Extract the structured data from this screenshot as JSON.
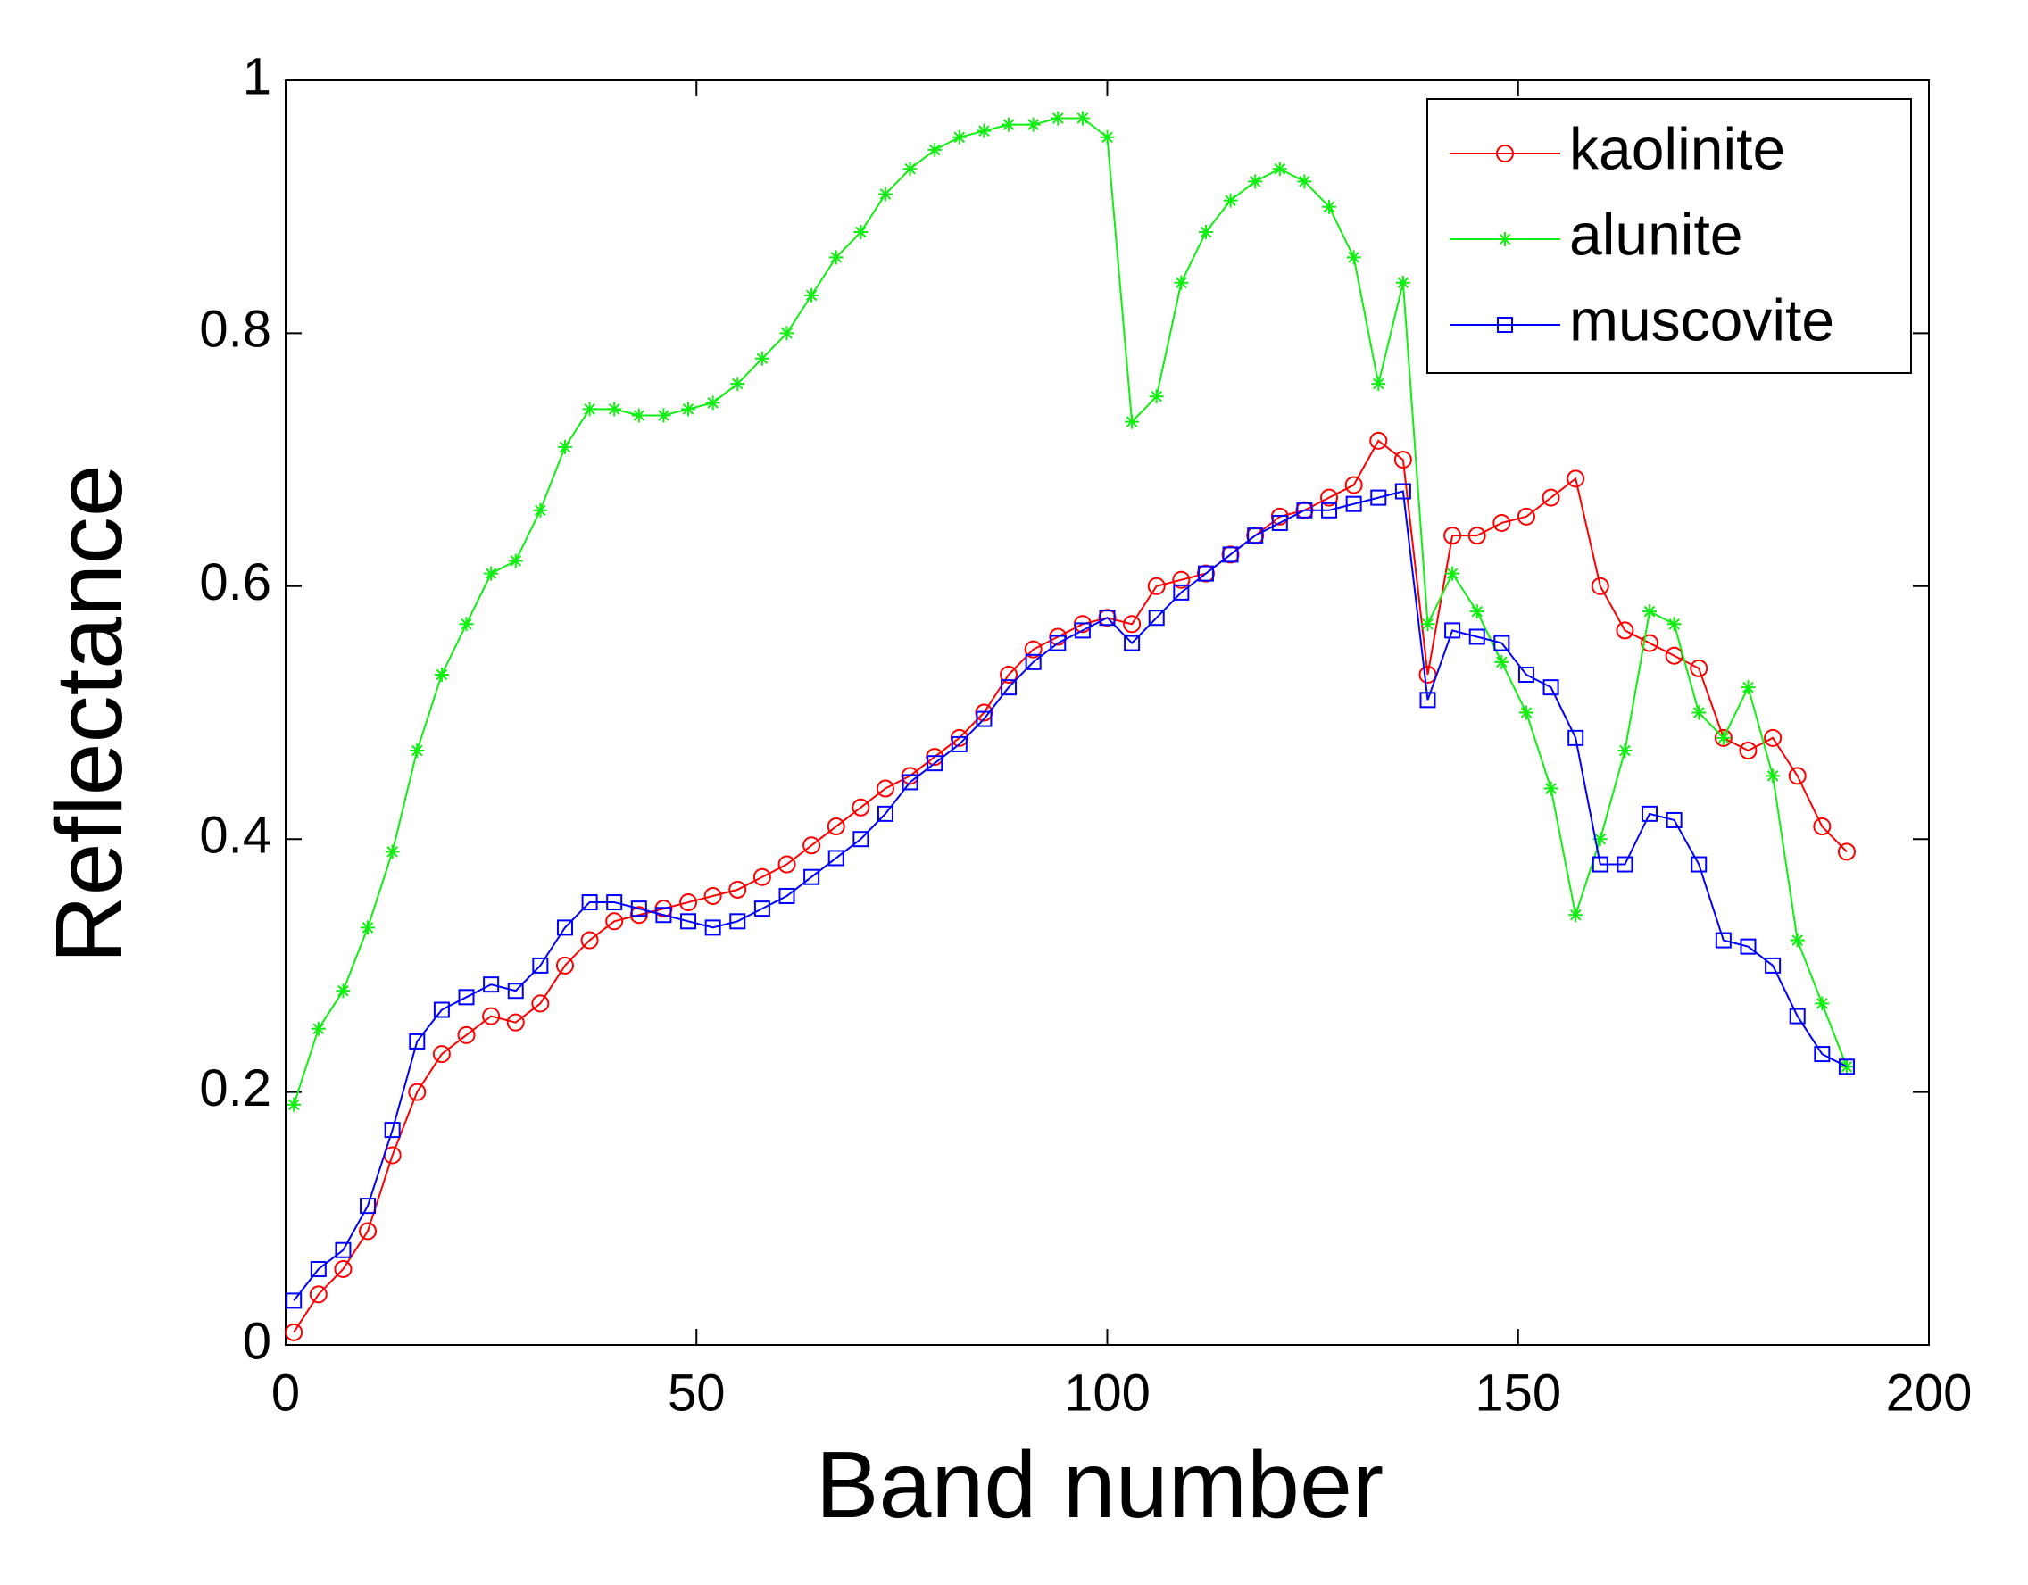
{
  "chart_data": {
    "type": "line",
    "xlabel": "Band number",
    "ylabel": "Reflectance",
    "xlim": [
      0,
      200
    ],
    "xticks": [
      0,
      50,
      100,
      150,
      200
    ],
    "ylim": [
      0,
      1
    ],
    "yticks": [
      0,
      0.2,
      0.4,
      0.6,
      0.8,
      1
    ],
    "grid": false,
    "legend": "upper right",
    "x": [
      1,
      4,
      7,
      10,
      13,
      16,
      19,
      22,
      25,
      28,
      31,
      34,
      37,
      40,
      43,
      46,
      49,
      52,
      55,
      58,
      61,
      64,
      67,
      70,
      73,
      76,
      79,
      82,
      85,
      88,
      91,
      94,
      97,
      100,
      103,
      106,
      109,
      112,
      115,
      118,
      121,
      124,
      127,
      130,
      133,
      136,
      139,
      142,
      145,
      148,
      151,
      154,
      157,
      160,
      163,
      166,
      169,
      172,
      175,
      178,
      181,
      184,
      187,
      190
    ],
    "series": [
      {
        "name": "kaolinite",
        "color": "#ff0000",
        "marker": "circle",
        "values": [
          0.01,
          0.04,
          0.06,
          0.09,
          0.15,
          0.2,
          0.23,
          0.245,
          0.26,
          0.255,
          0.27,
          0.3,
          0.32,
          0.335,
          0.34,
          0.345,
          0.35,
          0.355,
          0.36,
          0.37,
          0.38,
          0.395,
          0.41,
          0.425,
          0.44,
          0.45,
          0.465,
          0.48,
          0.5,
          0.53,
          0.55,
          0.56,
          0.57,
          0.575,
          0.57,
          0.6,
          0.605,
          0.61,
          0.625,
          0.64,
          0.655,
          0.66,
          0.67,
          0.68,
          0.715,
          0.7,
          0.53,
          0.64,
          0.64,
          0.65,
          0.655,
          0.67,
          0.685,
          0.6,
          0.565,
          0.555,
          0.545,
          0.535,
          0.48,
          0.47,
          0.48,
          0.45,
          0.41,
          0.39
        ]
      },
      {
        "name": "alunite",
        "color": "#11ee11",
        "marker": "asterisk",
        "values": [
          0.19,
          0.25,
          0.28,
          0.33,
          0.39,
          0.47,
          0.53,
          0.57,
          0.61,
          0.62,
          0.66,
          0.71,
          0.74,
          0.74,
          0.735,
          0.735,
          0.74,
          0.745,
          0.76,
          0.78,
          0.8,
          0.83,
          0.86,
          0.88,
          0.91,
          0.93,
          0.945,
          0.955,
          0.96,
          0.965,
          0.965,
          0.97,
          0.97,
          0.955,
          0.73,
          0.75,
          0.84,
          0.88,
          0.905,
          0.92,
          0.93,
          0.92,
          0.9,
          0.86,
          0.76,
          0.84,
          0.57,
          0.61,
          0.58,
          0.54,
          0.5,
          0.44,
          0.34,
          0.4,
          0.47,
          0.58,
          0.57,
          0.5,
          0.48,
          0.52,
          0.45,
          0.32,
          0.27,
          0.22
        ]
      },
      {
        "name": "muscovite",
        "color": "#0000ff",
        "marker": "square",
        "values": [
          0.035,
          0.06,
          0.075,
          0.11,
          0.17,
          0.24,
          0.265,
          0.275,
          0.285,
          0.28,
          0.3,
          0.33,
          0.35,
          0.35,
          0.345,
          0.34,
          0.335,
          0.33,
          0.335,
          0.345,
          0.355,
          0.37,
          0.385,
          0.4,
          0.42,
          0.445,
          0.46,
          0.475,
          0.495,
          0.52,
          0.54,
          0.555,
          0.565,
          0.575,
          0.555,
          0.575,
          0.595,
          0.61,
          0.625,
          0.64,
          0.65,
          0.66,
          0.66,
          0.665,
          0.67,
          0.675,
          0.51,
          0.565,
          0.56,
          0.555,
          0.53,
          0.52,
          0.48,
          0.38,
          0.38,
          0.42,
          0.415,
          0.38,
          0.32,
          0.315,
          0.3,
          0.26,
          0.23,
          0.22
        ]
      }
    ]
  }
}
